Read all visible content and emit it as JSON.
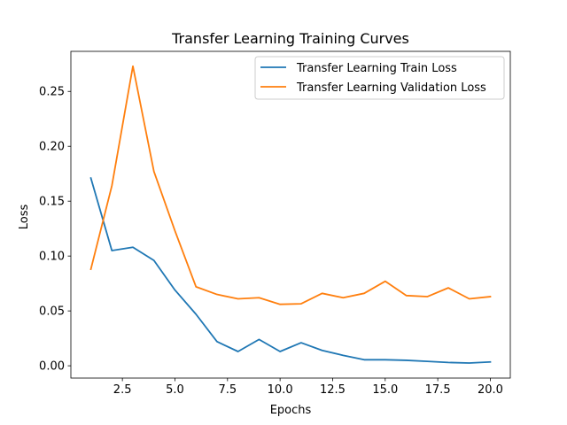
{
  "chart_data": {
    "type": "line",
    "title": "Transfer Learning Training Curves",
    "xlabel": "Epochs",
    "ylabel": "Loss",
    "xlim": [
      0.05,
      20.95
    ],
    "ylim": [
      -0.0112,
      0.2865
    ],
    "grid": false,
    "legend_position": "top-right",
    "x": [
      1,
      2,
      3,
      4,
      5,
      6,
      7,
      8,
      9,
      10,
      11,
      12,
      13,
      14,
      15,
      16,
      17,
      18,
      19,
      20
    ],
    "xticks": [
      2.5,
      5.0,
      7.5,
      10.0,
      12.5,
      15.0,
      17.5,
      20.0
    ],
    "xtick_labels": [
      "2.5",
      "5.0",
      "7.5",
      "10.0",
      "12.5",
      "15.0",
      "17.5",
      "20.0"
    ],
    "yticks": [
      0.0,
      0.05,
      0.1,
      0.15,
      0.2,
      0.25
    ],
    "ytick_labels": [
      "0.00",
      "0.05",
      "0.10",
      "0.15",
      "0.20",
      "0.25"
    ],
    "series": [
      {
        "name": "Transfer Learning Train Loss",
        "color": "#1f77b4",
        "values": [
          0.171,
          0.105,
          0.108,
          0.096,
          0.069,
          0.047,
          0.022,
          0.013,
          0.024,
          0.013,
          0.021,
          0.014,
          0.0095,
          0.0055,
          0.0055,
          0.005,
          0.004,
          0.003,
          0.0025,
          0.0035
        ]
      },
      {
        "name": "Transfer Learning Validation Loss",
        "color": "#ff7f0e",
        "values": [
          0.088,
          0.164,
          0.273,
          0.177,
          0.123,
          0.072,
          0.065,
          0.061,
          0.062,
          0.056,
          0.0565,
          0.066,
          0.062,
          0.066,
          0.077,
          0.064,
          0.063,
          0.071,
          0.061,
          0.063
        ]
      }
    ]
  }
}
